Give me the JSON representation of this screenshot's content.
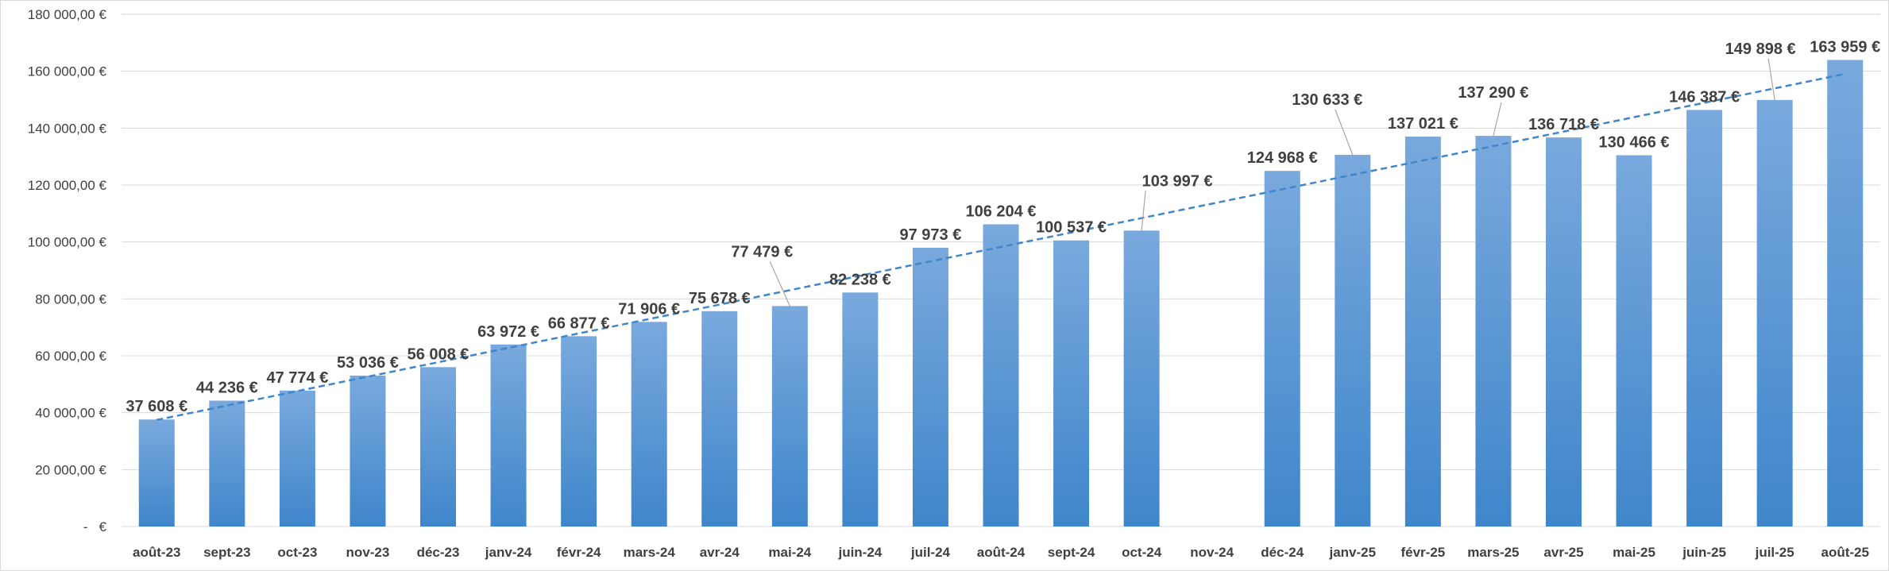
{
  "chart_data": {
    "type": "bar",
    "title": "",
    "xlabel": "",
    "ylabel": "",
    "ylim": [
      0,
      180000
    ],
    "y_ticks": [
      {
        "value": 0,
        "label": "-   €"
      },
      {
        "value": 20000,
        "label": "20 000,00 €"
      },
      {
        "value": 40000,
        "label": "40 000,00 €"
      },
      {
        "value": 60000,
        "label": "60 000,00 €"
      },
      {
        "value": 80000,
        "label": "80 000,00 €"
      },
      {
        "value": 100000,
        "label": "100 000,00 €"
      },
      {
        "value": 120000,
        "label": "120 000,00 €"
      },
      {
        "value": 140000,
        "label": "140 000,00 €"
      },
      {
        "value": 160000,
        "label": "160 000,00 €"
      },
      {
        "value": 180000,
        "label": "180 000,00 €"
      }
    ],
    "grid": true,
    "legend": "none",
    "categories": [
      "août-23",
      "sept-23",
      "oct-23",
      "nov-23",
      "déc-23",
      "janv-24",
      "févr-24",
      "mars-24",
      "avr-24",
      "mai-24",
      "juin-24",
      "juil-24",
      "août-24",
      "sept-24",
      "oct-24",
      "nov-24",
      "déc-24",
      "janv-25",
      "févr-25",
      "mars-25",
      "avr-25",
      "mai-25",
      "juin-25",
      "juil-25",
      "août-25"
    ],
    "values": [
      37608,
      44236,
      47774,
      53036,
      56008,
      63972,
      66877,
      71906,
      75678,
      77479,
      82238,
      97973,
      106204,
      100537,
      103997,
      null,
      124968,
      130633,
      137021,
      137290,
      136718,
      130466,
      146387,
      149898,
      163959
    ],
    "data_labels": [
      "37 608 €",
      "44 236 €",
      "47 774 €",
      "53 036 €",
      "56 008 €",
      "63 972 €",
      "66 877 €",
      "71 906 €",
      "75 678 €",
      "77 479 €",
      "82 238 €",
      "97 973 €",
      "106 204 €",
      "100 537 €",
      "103 997 €",
      "",
      "124 968 €",
      "130 633 €",
      "137 021 €",
      "137 290 €",
      "136 718 €",
      "130 466 €",
      "146 387 €",
      "149 898 €",
      "163 959 €"
    ],
    "trendline": {
      "type": "linear",
      "style": "dashed"
    },
    "colors": {
      "bar_top": "#79a9dd",
      "bar_bottom": "#3f86cb",
      "trendline": "#3f86cb",
      "grid": "#d9d9d9",
      "text": "#404040"
    }
  }
}
